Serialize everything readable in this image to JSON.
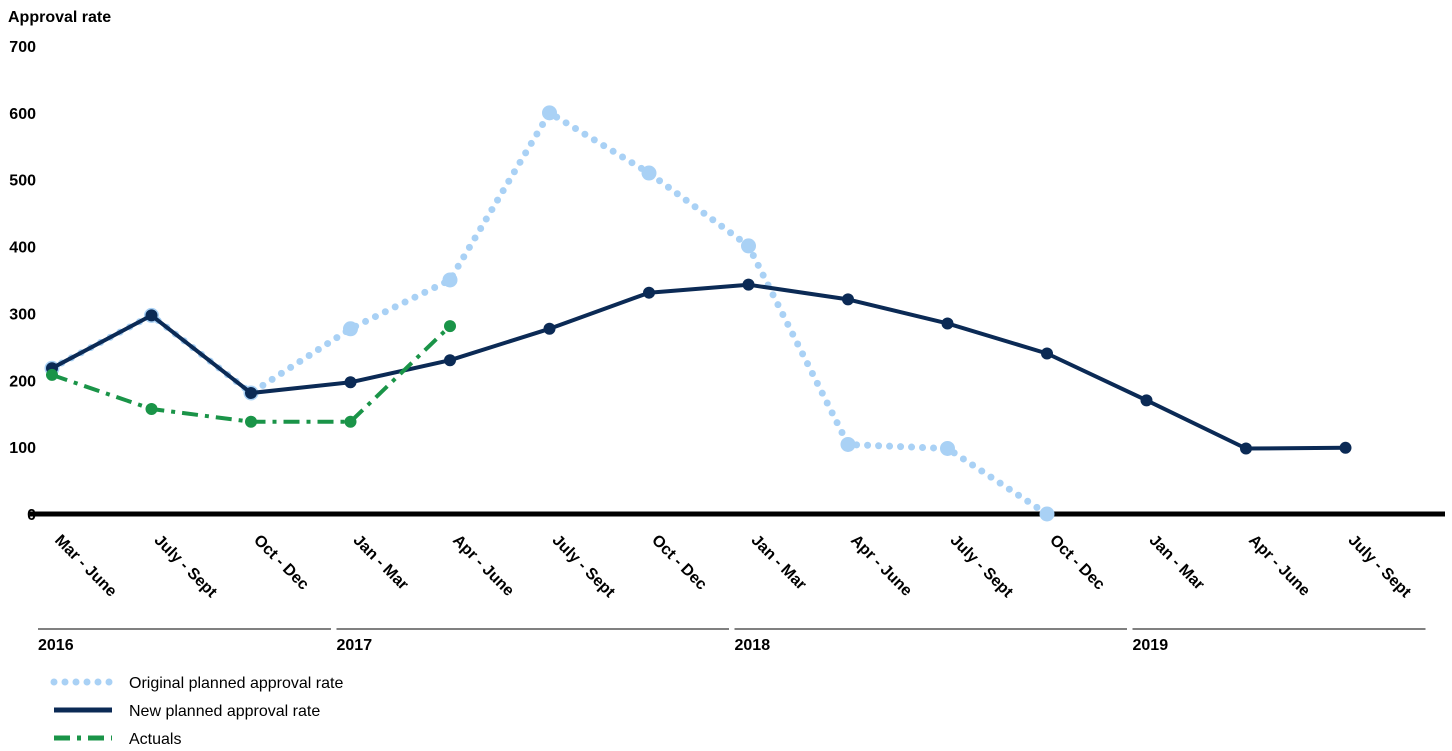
{
  "chart_data": {
    "type": "line",
    "ylabel": "Approval rate",
    "ylim": [
      0,
      700
    ],
    "yticks": [
      0,
      100,
      200,
      300,
      400,
      500,
      600,
      700
    ],
    "categories": [
      "Mar - June",
      "July - Sept",
      "Oct - Dec",
      "Jan - Mar",
      "Apr - June",
      "July - Sept",
      "Oct - Dec",
      "Jan - Mar",
      "Apr - June",
      "July - Sept",
      "Oct - Dec",
      "Jan - Mar",
      "Apr - June",
      "July - Sept"
    ],
    "year_groups": [
      {
        "label": "2016",
        "start": 0,
        "end": 2
      },
      {
        "label": "2017",
        "start": 3,
        "end": 6
      },
      {
        "label": "2018",
        "start": 7,
        "end": 10
      },
      {
        "label": "2019",
        "start": 11,
        "end": 13
      }
    ],
    "series": [
      {
        "name": "Original planned approval rate",
        "color": "#a9d1f5",
        "style": "dotted",
        "marker_size": "large",
        "values": [
          218,
          297,
          181,
          277,
          350,
          600,
          510,
          401,
          104,
          98,
          0,
          null,
          null,
          null
        ]
      },
      {
        "name": "New planned approval rate",
        "color": "#0b2a55",
        "style": "solid",
        "marker_size": "small",
        "values": [
          218,
          297,
          181,
          197,
          230,
          277,
          331,
          343,
          321,
          285,
          240,
          170,
          98,
          99
        ]
      },
      {
        "name": "Actuals",
        "color": "#1a9448",
        "style": "dash-dot",
        "marker_size": "small",
        "values": [
          208,
          157,
          138,
          138,
          281,
          null,
          null,
          null,
          null,
          null,
          null,
          null,
          null,
          null
        ]
      }
    ],
    "legend_position": "bottom-left",
    "grid": false
  }
}
